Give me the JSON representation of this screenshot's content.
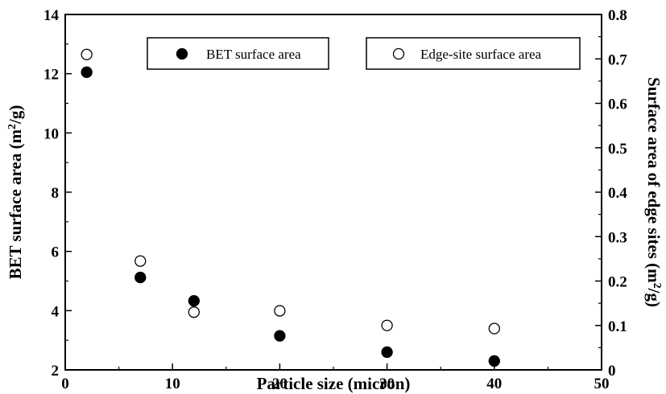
{
  "chart_data": {
    "type": "scatter",
    "title": "",
    "xlabel": "Particle size (micron)",
    "ylabel_left": "BET surface area (m²/g)",
    "ylabel_right": "Surface area of edge sites (m²/g)",
    "xlim": [
      0,
      50
    ],
    "ylim_left": [
      2,
      14
    ],
    "ylim_right": [
      0,
      0.8
    ],
    "x_ticks": [
      "0",
      "10",
      "20",
      "30",
      "40",
      "50"
    ],
    "y_left_ticks": [
      "2",
      "4",
      "6",
      "8",
      "10",
      "12",
      "14"
    ],
    "y_right_ticks": [
      "0",
      "0.1",
      "0.2",
      "0.3",
      "0.4",
      "0.5",
      "0.6",
      "0.7",
      "0.8"
    ],
    "x_tick_values": [
      0,
      10,
      20,
      30,
      40,
      50
    ],
    "y_left_tick_values": [
      2,
      4,
      6,
      8,
      10,
      12,
      14
    ],
    "y_right_tick_values": [
      0,
      0.1,
      0.2,
      0.3,
      0.4,
      0.5,
      0.6,
      0.7,
      0.8
    ],
    "grid": false,
    "legend_placement": "top",
    "series": [
      {
        "name": "BET surface area",
        "axis": "left",
        "marker": "filled-circle",
        "color": "#000000",
        "x": [
          2,
          7,
          12,
          20,
          30,
          40
        ],
        "y": [
          12.05,
          5.12,
          4.33,
          3.15,
          2.6,
          2.3
        ]
      },
      {
        "name": "Edge-site surface area",
        "axis": "right",
        "marker": "open-circle",
        "color": "#000000",
        "x": [
          2,
          7,
          12,
          20,
          30,
          40
        ],
        "y": [
          0.71,
          0.245,
          0.13,
          0.133,
          0.1,
          0.093
        ]
      }
    ]
  }
}
